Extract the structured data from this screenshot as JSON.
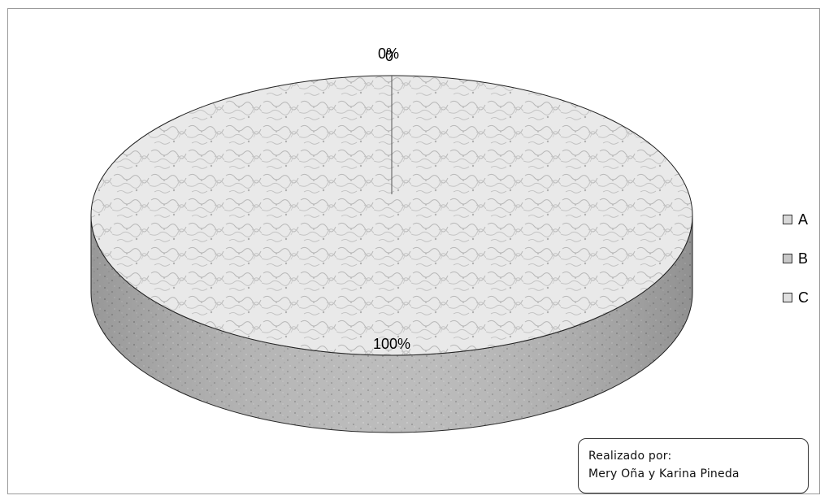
{
  "chart_data": {
    "type": "pie",
    "categories": [
      "A",
      "B",
      "C"
    ],
    "values": [
      100,
      0,
      0
    ],
    "data_labels": [
      "100%",
      "0%",
      "0"
    ],
    "legend_placement": "right",
    "style": "3d"
  },
  "legend": {
    "items": [
      {
        "label": "A",
        "color": "#d8d8d8"
      },
      {
        "label": "B",
        "color": "#c8c8c8"
      },
      {
        "label": "C",
        "color": "#e0e0e0"
      }
    ]
  },
  "annotation": {
    "line1": "Realizado por:",
    "line2": "Mery  Oña y Karina Pineda"
  }
}
